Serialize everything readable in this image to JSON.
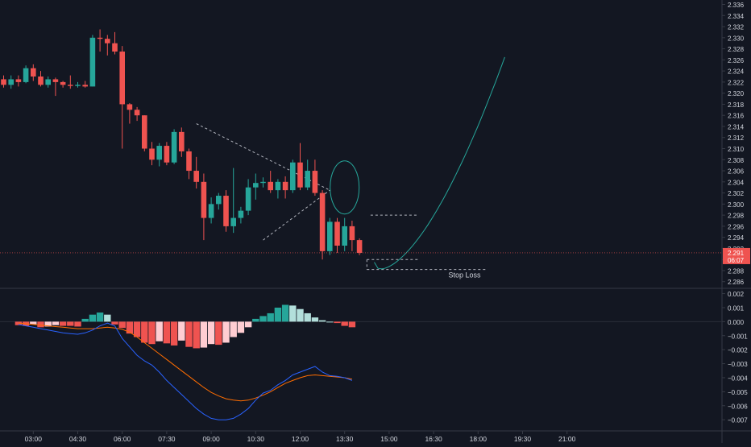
{
  "colors": {
    "background": "#131722",
    "up": "#26a69a",
    "down": "#ef5350",
    "hist_up_strong": "#26a69a",
    "hist_up_weak": "#b2dfdb",
    "hist_down_strong": "#ef5350",
    "hist_down_weak": "#ffcdd2",
    "macd_line": "#2962ff",
    "signal_line": "#ff6d00",
    "projection": "#26a69a",
    "axis_text": "#d1d4dc",
    "price_badge": "#ef5350",
    "divider": "#363a45"
  },
  "price_badge": {
    "price": "2.291",
    "countdown": "06:07"
  },
  "annotations": {
    "stop_loss_label": "Stop Loss"
  },
  "chart_data": [
    {
      "type": "candlestick",
      "title": "",
      "x_tick_labels": [
        "03:00",
        "04:30",
        "06:00",
        "07:30",
        "09:00",
        "10:30",
        "12:00",
        "13:30",
        "15:00",
        "16:30",
        "18:00",
        "19:30",
        "21:00"
      ],
      "y_tick_labels": [
        "2.336",
        "2.334",
        "2.332",
        "2.330",
        "2.328",
        "2.326",
        "2.324",
        "2.322",
        "2.320",
        "2.318",
        "2.316",
        "2.314",
        "2.312",
        "2.310",
        "2.308",
        "2.306",
        "2.304",
        "2.302",
        "2.300",
        "2.298",
        "2.296",
        "2.294",
        "2.292",
        "2.290",
        "2.288",
        "2.286"
      ],
      "ylim": [
        2.2848,
        2.3368
      ],
      "bar_interval_minutes": 15,
      "start_time": "02:00",
      "candles": [
        [
          2.3225,
          2.3232,
          2.321,
          2.3215
        ],
        [
          2.3215,
          2.3232,
          2.3208,
          2.3225
        ],
        [
          2.3225,
          2.3232,
          2.3212,
          2.322
        ],
        [
          2.322,
          2.325,
          2.3218,
          2.3245
        ],
        [
          2.3245,
          2.3252,
          2.3222,
          2.323
        ],
        [
          2.323,
          2.324,
          2.3212,
          2.3215
        ],
        [
          2.3215,
          2.323,
          2.321,
          2.3225
        ],
        [
          2.3225,
          2.3228,
          2.3195,
          2.322
        ],
        [
          2.322,
          2.3222,
          2.321,
          2.3215
        ],
        [
          2.3215,
          2.3232,
          2.3208,
          2.3213
        ],
        [
          2.3213,
          2.322,
          2.321,
          2.3215
        ],
        [
          2.3215,
          2.3222,
          2.321,
          2.3212
        ],
        [
          2.3212,
          2.3305,
          2.3212,
          2.33
        ],
        [
          2.33,
          2.3315,
          2.3275,
          2.3298
        ],
        [
          2.3298,
          2.3305,
          2.3268,
          2.329
        ],
        [
          2.329,
          2.331,
          2.327,
          2.3275
        ],
        [
          2.3275,
          2.3285,
          2.31,
          2.318
        ],
        [
          2.318,
          2.3182,
          2.3145,
          2.317
        ],
        [
          2.317,
          2.3175,
          2.315,
          2.316
        ],
        [
          2.316,
          2.316,
          2.3095,
          2.31
        ],
        [
          2.31,
          2.3112,
          2.307,
          2.308
        ],
        [
          2.308,
          2.311,
          2.3068,
          2.3105
        ],
        [
          2.3105,
          2.3112,
          2.307,
          2.3075
        ],
        [
          2.3075,
          2.3135,
          2.3072,
          2.313
        ],
        [
          2.313,
          2.3138,
          2.3085,
          2.3095
        ],
        [
          2.3095,
          2.31,
          2.3045,
          2.306
        ],
        [
          2.306,
          2.3085,
          2.3028,
          2.304
        ],
        [
          2.304,
          2.3055,
          2.2935,
          2.2975
        ],
        [
          2.2975,
          2.3012,
          2.2965,
          2.3
        ],
        [
          2.3,
          2.302,
          2.299,
          2.3015
        ],
        [
          2.3015,
          2.3025,
          2.295,
          2.296
        ],
        [
          2.296,
          2.3065,
          2.2948,
          2.2975
        ],
        [
          2.2975,
          2.2995,
          2.2965,
          2.2988
        ],
        [
          2.2988,
          2.3045,
          2.298,
          2.303
        ],
        [
          2.303,
          2.3055,
          2.3008,
          2.3038
        ],
        [
          2.3038,
          2.3048,
          2.303,
          2.304
        ],
        [
          2.304,
          2.306,
          2.302,
          2.3025
        ],
        [
          2.3025,
          2.3045,
          2.301,
          2.304
        ],
        [
          2.304,
          2.305,
          2.301,
          2.3025
        ],
        [
          2.3025,
          2.308,
          2.302,
          2.3075
        ],
        [
          2.3075,
          2.311,
          2.3025,
          2.303
        ],
        [
          2.303,
          2.308,
          2.3025,
          2.306
        ],
        [
          2.306,
          2.308,
          2.3015,
          2.302
        ],
        [
          2.302,
          2.3025,
          2.29,
          2.2915
        ],
        [
          2.2915,
          2.2975,
          2.2908,
          2.2968
        ],
        [
          2.2968,
          2.2975,
          2.2912,
          2.2925
        ],
        [
          2.2925,
          2.2975,
          2.2915,
          2.296
        ],
        [
          2.296,
          2.297,
          2.2915,
          2.2935
        ],
        [
          2.2935,
          2.2938,
          2.2908,
          2.2912
        ]
      ]
    },
    {
      "type": "macd",
      "y_tick_labels": [
        "0.002",
        "0.001",
        "0.000",
        "−0.001",
        "−0.002",
        "−0.003",
        "−0.004",
        "−0.005",
        "−0.006",
        "−0.007"
      ],
      "ylim": [
        -0.00768,
        0.00232
      ],
      "histogram": [
        -0.00025,
        -0.0003,
        -0.0002,
        -0.0004,
        -0.00035,
        -0.00025,
        -0.0003,
        -0.0003,
        -0.00035,
        0.0002,
        0.0005,
        0.00065,
        0.0005,
        -0.0002,
        -0.00045,
        -0.00085,
        -0.0011,
        -0.0015,
        -0.0016,
        -0.0014,
        -0.00155,
        -0.0017,
        -0.00135,
        -0.0018,
        -0.0019,
        -0.00185,
        -0.0016,
        -0.00165,
        -0.0015,
        -0.0011,
        -0.0008,
        -0.0004,
        0.0002,
        0.0004,
        0.0006,
        0.001,
        0.0012,
        0.00115,
        0.0009,
        0.0006,
        0.0003,
        0.0001,
        0.0,
        -0.0001,
        -0.0003,
        -0.0004
      ],
      "macd": [
        -0.0002,
        -0.0003,
        -0.0004,
        -0.0005,
        -0.0006,
        -0.0007,
        -0.0008,
        -0.00085,
        -0.0009,
        -0.0008,
        -0.0006,
        -0.0003,
        -0.0001,
        -0.0003,
        -0.0012,
        -0.0018,
        -0.0024,
        -0.0028,
        -0.0031,
        -0.0036,
        -0.0042,
        -0.0047,
        -0.0052,
        -0.0057,
        -0.0062,
        -0.0066,
        -0.0069,
        -0.007,
        -0.007,
        -0.0069,
        -0.0066,
        -0.0062,
        -0.0056,
        -0.0051,
        -0.0049,
        -0.0045,
        -0.0042,
        -0.0038,
        -0.0036,
        -0.0034,
        -0.0032,
        -0.0036,
        -0.00385,
        -0.0039,
        -0.004,
        -0.0042
      ],
      "signal": [
        -0.0001,
        -0.00015,
        -0.0002,
        -0.00025,
        -0.0003,
        -0.00035,
        -0.0004,
        -0.00045,
        -0.0005,
        -0.0005,
        -0.0005,
        -0.00045,
        -0.0004,
        -0.00045,
        -0.00055,
        -0.00075,
        -0.0011,
        -0.0015,
        -0.0019,
        -0.0023,
        -0.0027,
        -0.0031,
        -0.0035,
        -0.0039,
        -0.0043,
        -0.0047,
        -0.00505,
        -0.0053,
        -0.0055,
        -0.0056,
        -0.00565,
        -0.0056,
        -0.00545,
        -0.00525,
        -0.005,
        -0.0047,
        -0.0044,
        -0.0042,
        -0.004,
        -0.00385,
        -0.0038,
        -0.00385,
        -0.0039,
        -0.00395,
        -0.004,
        -0.0041
      ]
    }
  ]
}
